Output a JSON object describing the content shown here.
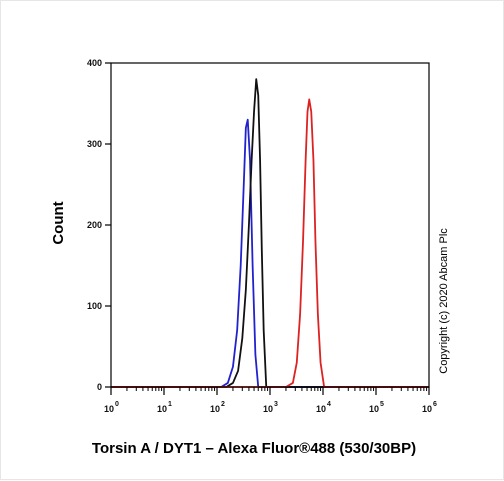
{
  "chart_data": {
    "type": "line",
    "title": "",
    "xlabel": "Torsin A / DYT1 – Alexa Fluor®488 (530/30BP)",
    "ylabel": "Count",
    "x_scale": "log",
    "xlim": [
      1,
      1000000
    ],
    "ylim": [
      0,
      400
    ],
    "x_ticks": [
      {
        "base": "10",
        "exp": "0",
        "value": 1
      },
      {
        "base": "10",
        "exp": "1",
        "value": 10
      },
      {
        "base": "10",
        "exp": "2",
        "value": 100
      },
      {
        "base": "10",
        "exp": "3",
        "value": 1000
      },
      {
        "base": "10",
        "exp": "4",
        "value": 10000
      },
      {
        "base": "10",
        "exp": "5",
        "value": 100000
      },
      {
        "base": "10",
        "exp": "6",
        "value": 1000000
      }
    ],
    "y_ticks": [
      {
        "label": "0",
        "value": 0
      },
      {
        "label": "100",
        "value": 100
      },
      {
        "label": "200",
        "value": 200
      },
      {
        "label": "300",
        "value": 300
      },
      {
        "label": "400",
        "value": 400
      }
    ],
    "grid": false,
    "series": [
      {
        "color": "#2222cc",
        "x": [
          1,
          120,
          160,
          200,
          240,
          280,
          320,
          350,
          380,
          420,
          470,
          530,
          600,
          1000000
        ],
        "y": [
          0,
          0,
          5,
          25,
          70,
          150,
          250,
          320,
          330,
          280,
          150,
          40,
          0,
          0
        ]
      },
      {
        "color": "#111111",
        "x": [
          1,
          150,
          200,
          250,
          300,
          350,
          400,
          450,
          500,
          550,
          600,
          650,
          700,
          760,
          850,
          1000000
        ],
        "y": [
          0,
          0,
          5,
          20,
          60,
          120,
          200,
          280,
          340,
          380,
          360,
          280,
          170,
          70,
          0,
          0
        ]
      },
      {
        "color": "#dd2222",
        "x": [
          1,
          2000,
          2700,
          3200,
          3700,
          4200,
          4700,
          5100,
          5500,
          6000,
          6600,
          7200,
          8000,
          9000,
          10500,
          1000000
        ],
        "y": [
          0,
          0,
          5,
          30,
          90,
          180,
          280,
          340,
          355,
          340,
          280,
          180,
          90,
          30,
          0,
          0
        ]
      }
    ]
  },
  "annotations": {
    "copyright": "Copyright (c) 2020 Abcam Plc"
  }
}
